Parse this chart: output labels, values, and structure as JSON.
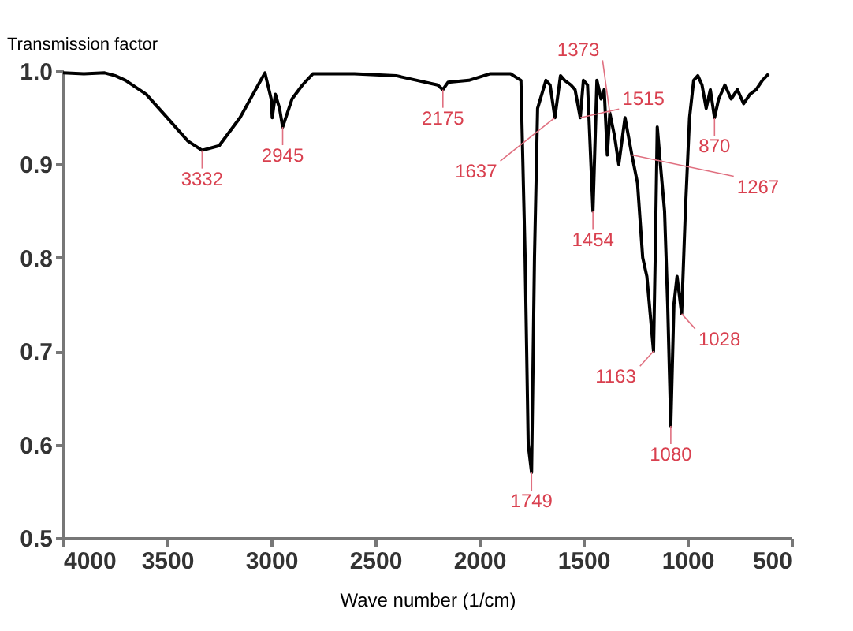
{
  "chart_data": {
    "type": "line",
    "xlabel": "Wave number (1/cm)",
    "ylabel": "Transmission factor",
    "x": [
      4000,
      3900,
      3800,
      3750,
      3700,
      3600,
      3500,
      3400,
      3332,
      3250,
      3150,
      3050,
      3030,
      3000,
      2995,
      2980,
      2960,
      2945,
      2900,
      2850,
      2800,
      2600,
      2400,
      2300,
      2200,
      2175,
      2150,
      2050,
      1950,
      1850,
      1800,
      1780,
      1765,
      1749,
      1735,
      1720,
      1700,
      1680,
      1660,
      1637,
      1610,
      1590,
      1560,
      1540,
      1515,
      1500,
      1480,
      1454,
      1435,
      1415,
      1400,
      1385,
      1373,
      1350,
      1330,
      1300,
      1267,
      1240,
      1215,
      1195,
      1163,
      1155,
      1145,
      1130,
      1110,
      1095,
      1080,
      1065,
      1050,
      1028,
      1010,
      990,
      970,
      950,
      930,
      910,
      890,
      870,
      850,
      820,
      790,
      760,
      730,
      700,
      670,
      640,
      610
    ],
    "series": [
      {
        "color": "#000000",
        "values": [
          0.998,
          0.997,
          0.998,
          0.995,
          0.99,
          0.975,
          0.95,
          0.925,
          0.915,
          0.92,
          0.95,
          0.99,
          0.998,
          0.97,
          0.95,
          0.975,
          0.96,
          0.94,
          0.97,
          0.985,
          0.997,
          0.997,
          0.995,
          0.99,
          0.985,
          0.98,
          0.988,
          0.99,
          0.997,
          0.997,
          0.99,
          0.8,
          0.6,
          0.57,
          0.8,
          0.96,
          0.975,
          0.99,
          0.985,
          0.95,
          0.995,
          0.99,
          0.985,
          0.98,
          0.95,
          0.99,
          0.985,
          0.85,
          0.99,
          0.97,
          0.98,
          0.91,
          0.955,
          0.93,
          0.9,
          0.95,
          0.91,
          0.88,
          0.8,
          0.78,
          0.7,
          0.8,
          0.94,
          0.9,
          0.85,
          0.75,
          0.62,
          0.75,
          0.78,
          0.74,
          0.85,
          0.95,
          0.99,
          0.995,
          0.985,
          0.96,
          0.98,
          0.95,
          0.97,
          0.985,
          0.97,
          0.98,
          0.965,
          0.975,
          0.98,
          0.99,
          0.997
        ]
      }
    ],
    "xlim": [
      4000,
      500
    ],
    "xticks": [
      4000,
      3500,
      3000,
      2500,
      2000,
      1500,
      1000,
      500
    ],
    "ylim": [
      0.5,
      1.0
    ],
    "yticks": [
      {
        "value": 0.5,
        "label": "0.5"
      },
      {
        "value": 0.6,
        "label": "0.6"
      },
      {
        "value": 0.7,
        "label": "0.7"
      },
      {
        "value": 0.8,
        "label": "0.8"
      },
      {
        "value": 0.9,
        "label": "0.9"
      },
      {
        "value": 1.0,
        "label": "1.0"
      }
    ],
    "grid": false,
    "annotations": [
      {
        "text": "3332",
        "x": 3332,
        "y": 0.915
      },
      {
        "text": "2945",
        "x": 2945,
        "y": 0.94
      },
      {
        "text": "2175",
        "x": 2175,
        "y": 0.98
      },
      {
        "text": "1749",
        "x": 1749,
        "y": 0.57
      },
      {
        "text": "1637",
        "x": 1637,
        "y": 0.95
      },
      {
        "text": "1515",
        "x": 1515,
        "y": 0.95
      },
      {
        "text": "1454",
        "x": 1454,
        "y": 0.85
      },
      {
        "text": "1373",
        "x": 1373,
        "y": 0.955
      },
      {
        "text": "1267",
        "x": 1267,
        "y": 0.91
      },
      {
        "text": "1163",
        "x": 1163,
        "y": 0.7
      },
      {
        "text": "1080",
        "x": 1080,
        "y": 0.62
      },
      {
        "text": "1028",
        "x": 1028,
        "y": 0.74
      },
      {
        "text": "870",
        "x": 870,
        "y": 0.95
      }
    ]
  }
}
